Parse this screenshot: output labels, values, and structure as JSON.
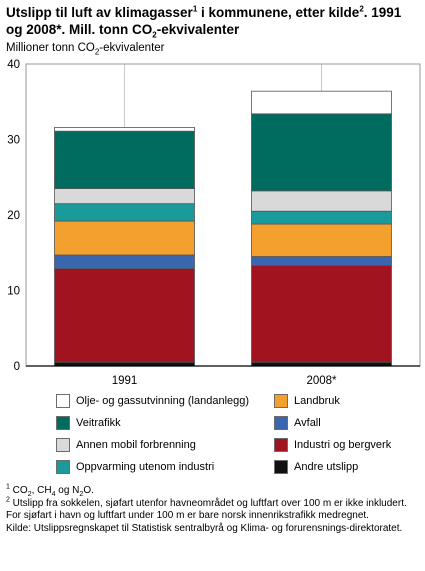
{
  "title": {
    "part1": "Utslipp til luft av klimagasser",
    "sup1": "1",
    "part2": " i kommunene, etter kilde",
    "sup2": "2",
    "part3": ". 1991 og 2008*. Mill. tonn CO",
    "sub": "2",
    "part4": "-ekvivalenter"
  },
  "unit_label": {
    "part1": "Millioner tonn CO",
    "sub": "2",
    "part2": "-ekvivalenter"
  },
  "colors": {
    "olje": "#ffffff",
    "veitrafikk": "#006b5f",
    "annen_mobil": "#d9d9d9",
    "oppvarming": "#1a9a9a",
    "landbruk": "#f3a02e",
    "avfall": "#3a66b0",
    "industri": "#a1141f",
    "andre": "#111111"
  },
  "chart_data": {
    "type": "bar",
    "stacked": true,
    "categories": [
      "1991",
      "2008*"
    ],
    "ylim": [
      0,
      40
    ],
    "yticks": [
      0,
      10,
      20,
      30,
      40
    ],
    "grid": "vertical lines at bar groups",
    "series": [
      {
        "key": "andre",
        "name": "Andre utslipp",
        "values": [
          0.5,
          0.5
        ]
      },
      {
        "key": "industri",
        "name": "Industri og bergverk",
        "values": [
          12.4,
          12.8
        ]
      },
      {
        "key": "avfall",
        "name": "Avfall",
        "values": [
          1.8,
          1.2
        ]
      },
      {
        "key": "landbruk",
        "name": "Landbruk",
        "values": [
          4.5,
          4.3
        ]
      },
      {
        "key": "oppvarming",
        "name": "Oppvarming utenom industri",
        "values": [
          2.3,
          1.7
        ]
      },
      {
        "key": "annen_mobil",
        "name": "Annen mobil forbrenning",
        "values": [
          2.0,
          2.7
        ]
      },
      {
        "key": "veitrafikk",
        "name": "Veitrafikk",
        "values": [
          7.6,
          10.2
        ]
      },
      {
        "key": "olje",
        "name": "Olje- og gassutvinning (landanlegg)",
        "values": [
          0.5,
          3.0
        ]
      }
    ]
  },
  "legend": [
    {
      "key": "olje",
      "label": "Olje- og gassutvinning (landanlegg)",
      "col": 0,
      "row": 0
    },
    {
      "key": "landbruk",
      "label": "Landbruk",
      "col": 1,
      "row": 0
    },
    {
      "key": "veitrafikk",
      "label": "Veitrafikk",
      "col": 0,
      "row": 1
    },
    {
      "key": "avfall",
      "label": "Avfall",
      "col": 1,
      "row": 1
    },
    {
      "key": "annen_mobil",
      "label": "Annen mobil forbrenning",
      "col": 0,
      "row": 2
    },
    {
      "key": "industri",
      "label": "Industri og bergverk",
      "col": 1,
      "row": 2
    },
    {
      "key": "oppvarming",
      "label": "Oppvarming utenom industri",
      "col": 0,
      "row": 3
    },
    {
      "key": "andre",
      "label": "Andre utslipp",
      "col": 1,
      "row": 3
    }
  ],
  "footnotes": {
    "fn1_sup": "1",
    "fn1_a": " CO",
    "fn1_sub1": "2",
    "fn1_b": ", CH",
    "fn1_sub2": "4",
    "fn1_c": " og N",
    "fn1_sub3": "2",
    "fn1_d": "O.",
    "fn2_sup": "2",
    "fn2_text": " Utslipp fra sokkelen, sjøfart utenfor havneområdet og luftfart over 100 m er ikke inkludert. For sjøfart i havn og luftfart under 100 m er bare norsk innenrikstrafikk medregnet.",
    "source": "Kilde: Utslippsregnskapet til Statistisk sentralbyrå og Klima- og forurensnings-direktoratet."
  }
}
